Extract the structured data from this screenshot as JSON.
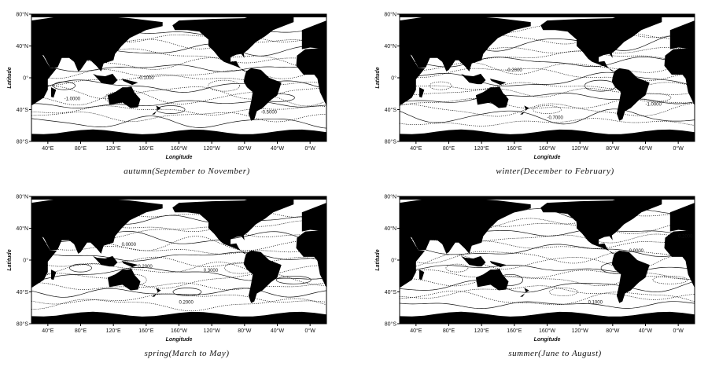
{
  "panels": [
    {
      "caption": "autumn(September to November)",
      "x_label": "Longitude",
      "y_label": "Latitude",
      "x_ticks": [
        "40°E",
        "80°E",
        "120°E",
        "160°E",
        "160°W",
        "120°W",
        "80°W",
        "40°W",
        "0°W"
      ],
      "y_ticks": [
        "80°N",
        "40°N",
        "0°",
        "40°S",
        "80°S"
      ],
      "contour_labels": [
        "-0.1000",
        "-1.0000",
        "-0.5000"
      ]
    },
    {
      "caption": "winter(December to February)",
      "x_label": "Longitude",
      "y_label": "Latitude",
      "x_ticks": [
        "40°E",
        "80°E",
        "120°E",
        "160°E",
        "160°W",
        "120°W",
        "80°W",
        "40°W",
        "0°W"
      ],
      "y_ticks": [
        "80°N",
        "40°N",
        "0°",
        "40°S",
        "80°S"
      ],
      "contour_labels": [
        "-0.2000",
        "-0.7000",
        "-1.0000"
      ]
    },
    {
      "caption": "spring(March to May)",
      "x_label": "Longitude",
      "y_label": "Latitude",
      "x_ticks": [
        "40°E",
        "80°E",
        "120°E",
        "160°E",
        "160°W",
        "120°W",
        "80°W",
        "40°W",
        "0°W"
      ],
      "y_ticks": [
        "80°N",
        "40°N",
        "0°",
        "40°S",
        "80°S"
      ],
      "contour_labels": [
        "0.0000",
        "0.2000",
        "0.3000",
        "0.2000"
      ]
    },
    {
      "caption": "summer(June to August)",
      "x_label": "Longitude",
      "y_label": "Latitude",
      "x_ticks": [
        "40°E",
        "80°E",
        "120°E",
        "160°E",
        "160°W",
        "120°W",
        "80°W",
        "40°W",
        "0°W"
      ],
      "y_ticks": [
        "80°N",
        "40°N",
        "0°",
        "40°S",
        "80°S"
      ],
      "contour_labels": [
        "0.2000",
        "0.0000",
        "0.1000"
      ]
    }
  ]
}
